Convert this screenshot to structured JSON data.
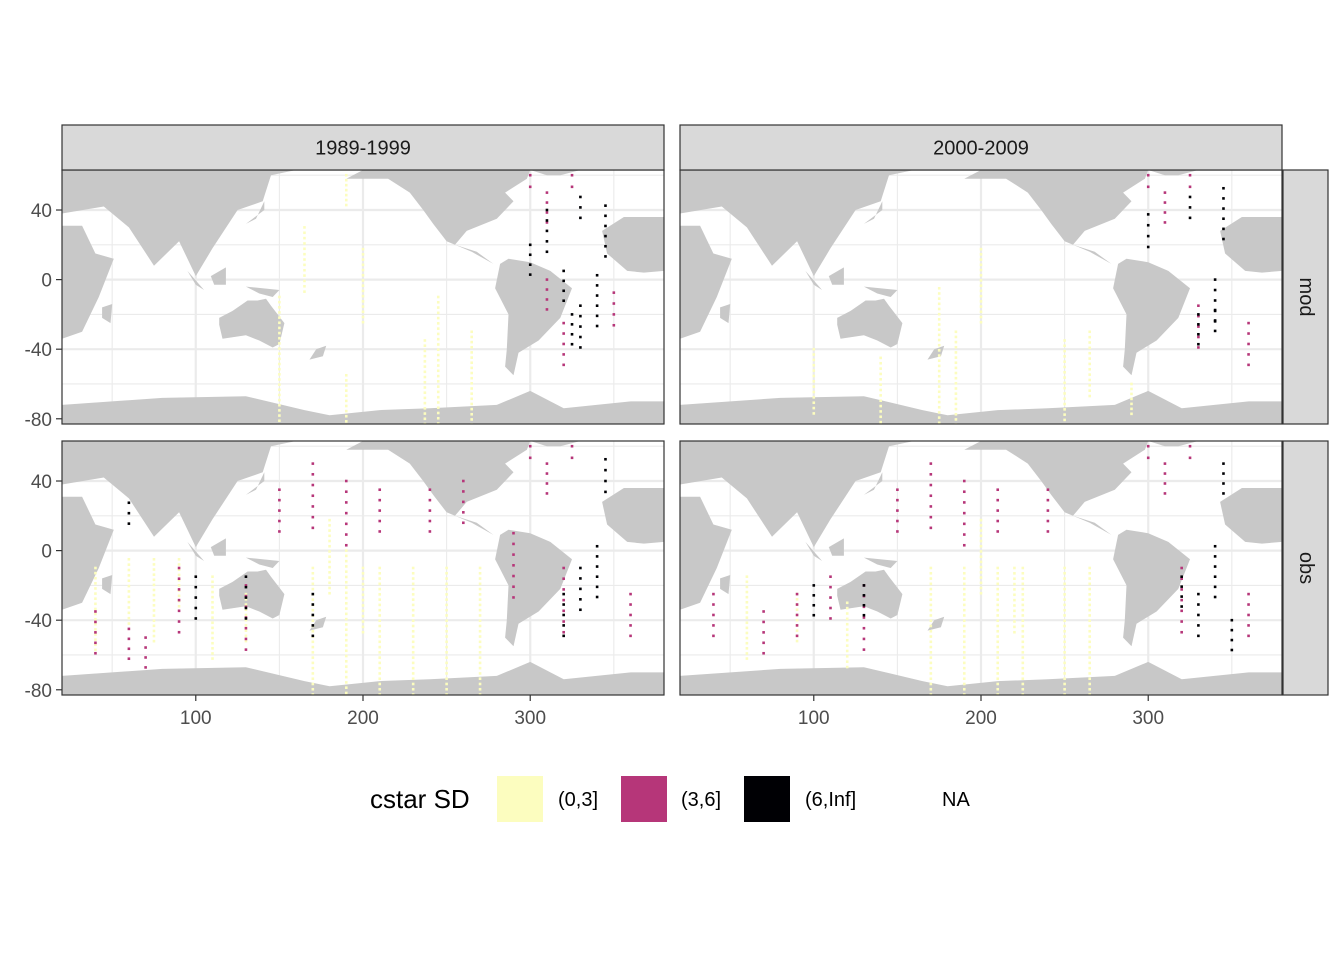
{
  "chart_data": {
    "type": "heatmap",
    "facets": {
      "columns": [
        "1989-1999",
        "2000-2009"
      ],
      "rows": [
        "mod",
        "obs"
      ]
    },
    "x_axis": {
      "label": "",
      "ticks": [
        100,
        200,
        300
      ],
      "xlim": [
        20,
        380
      ]
    },
    "y_axis": {
      "label": "",
      "ticks": [
        40,
        0,
        -40,
        -80
      ],
      "ylim": [
        -83,
        63
      ]
    },
    "legend": {
      "title": "cstar SD",
      "position": "bottom",
      "entries": [
        {
          "label": "(0,3]",
          "color": "#FCFDBF"
        },
        {
          "label": "(3,6]",
          "color": "#B63679"
        },
        {
          "label": "(6,Inf]",
          "color": "#000004"
        },
        {
          "label": "NA",
          "color": "#FFFFFF"
        }
      ]
    },
    "colors": {
      "land": "#C8C8C8",
      "ocean": "#FFFFFF",
      "grid": "#EBEBEB",
      "strip": "#D9D9D9",
      "border": "#333333"
    },
    "grid": true,
    "series": [
      {
        "name": "(0,3]",
        "panels": {
          "1989-1999|mod": [
            [
              190,
              -80,
              50
            ],
            [
              190,
              50,
              20
            ],
            [
              237,
              -65,
              60
            ],
            [
              245,
              -60,
              100
            ],
            [
              265,
              -70,
              80
            ],
            [
              150,
              -50,
              80
            ],
            [
              165,
              10,
              40
            ],
            [
              200,
              -5,
              45
            ]
          ],
          "2000-2009|mod": [
            [
              175,
              -60,
              110
            ],
            [
              185,
              -70,
              80
            ],
            [
              200,
              -5,
              45
            ],
            [
              250,
              -70,
              70
            ],
            [
              265,
              -50,
              40
            ],
            [
              100,
              -60,
              40
            ],
            [
              140,
              -65,
              40
            ],
            [
              290,
              -70,
              20
            ]
          ],
          "1989-1999|obs": [
            [
              40,
              -35,
              50
            ],
            [
              60,
              -25,
              40
            ],
            [
              75,
              -30,
              50
            ],
            [
              90,
              -20,
              30
            ],
            [
              110,
              -40,
              50
            ],
            [
              130,
              -40,
              30
            ],
            [
              170,
              -60,
              100
            ],
            [
              190,
              -50,
              100
            ],
            [
              210,
              -60,
              100
            ],
            [
              230,
              -60,
              100
            ],
            [
              250,
              -60,
              100
            ],
            [
              270,
              -60,
              100
            ],
            [
              180,
              -5,
              45
            ],
            [
              200,
              -30,
              40
            ]
          ],
          "2000-2009|obs": [
            [
              60,
              -40,
              50
            ],
            [
              90,
              -40,
              30
            ],
            [
              120,
              -50,
              40
            ],
            [
              170,
              -60,
              100
            ],
            [
              190,
              -60,
              100
            ],
            [
              210,
              -60,
              100
            ],
            [
              225,
              -60,
              100
            ],
            [
              250,
              -60,
              100
            ],
            [
              265,
              -60,
              100
            ],
            [
              200,
              -5,
              45
            ],
            [
              220,
              -30,
              40
            ]
          ]
        }
      },
      {
        "name": "(3,6]",
        "panels": {
          "1989-1999|mod": [
            [
              310,
              40,
              20
            ],
            [
              310,
              -10,
              20
            ],
            [
              320,
              -40,
              30
            ],
            [
              350,
              -20,
              25
            ],
            [
              325,
              55,
              10
            ],
            [
              300,
              55,
              10
            ]
          ],
          "2000-2009|mod": [
            [
              310,
              40,
              20
            ],
            [
              330,
              -30,
              30
            ],
            [
              360,
              -40,
              30
            ],
            [
              300,
              55,
              10
            ],
            [
              325,
              55,
              10
            ]
          ],
          "1989-1999|obs": [
            [
              310,
              40,
              20
            ],
            [
              320,
              -30,
              40
            ],
            [
              360,
              -40,
              30
            ],
            [
              40,
              -50,
              30
            ],
            [
              60,
              -55,
              20
            ],
            [
              70,
              -60,
              20
            ],
            [
              90,
              -30,
              40
            ],
            [
              130,
              -40,
              40
            ],
            [
              150,
              20,
              30
            ],
            [
              170,
              30,
              40
            ],
            [
              190,
              20,
              40
            ],
            [
              210,
              20,
              30
            ],
            [
              240,
              20,
              30
            ],
            [
              260,
              25,
              30
            ],
            [
              290,
              -10,
              40
            ],
            [
              300,
              55,
              10
            ],
            [
              325,
              55,
              10
            ]
          ],
          "2000-2009|obs": [
            [
              310,
              40,
              20
            ],
            [
              320,
              -30,
              40
            ],
            [
              360,
              -40,
              30
            ],
            [
              40,
              -40,
              30
            ],
            [
              70,
              -50,
              30
            ],
            [
              90,
              -40,
              30
            ],
            [
              130,
              -40,
              40
            ],
            [
              150,
              20,
              30
            ],
            [
              170,
              30,
              40
            ],
            [
              190,
              20,
              40
            ],
            [
              210,
              20,
              30
            ],
            [
              240,
              20,
              30
            ],
            [
              300,
              55,
              10
            ],
            [
              325,
              55,
              10
            ],
            [
              110,
              -30,
              30
            ]
          ]
        }
      },
      {
        "name": "(6,Inf]",
        "panels": {
          "1989-1999|mod": [
            [
              330,
              -30,
              30
            ],
            [
              340,
              -15,
              35
            ],
            [
              325,
              -30,
              20
            ],
            [
              345,
              25,
              35
            ],
            [
              330,
              40,
              15
            ],
            [
              320,
              -5,
              20
            ],
            [
              310,
              25,
              30
            ],
            [
              300,
              10,
              20
            ]
          ],
          "2000-2009|mod": [
            [
              340,
              -15,
              30
            ],
            [
              345,
              35,
              35
            ],
            [
              300,
              25,
              25
            ],
            [
              340,
              -25,
              15
            ],
            [
              325,
              40,
              15
            ],
            [
              330,
              -30,
              20
            ]
          ],
          "1989-1999|obs": [
            [
              330,
              -25,
              30
            ],
            [
              340,
              -15,
              35
            ],
            [
              320,
              -40,
              30
            ],
            [
              345,
              40,
              25
            ],
            [
              130,
              -30,
              30
            ],
            [
              60,
              20,
              15
            ],
            [
              100,
              -30,
              30
            ],
            [
              170,
              -40,
              30
            ]
          ],
          "2000-2009|obs": [
            [
              340,
              -15,
              35
            ],
            [
              330,
              -40,
              30
            ],
            [
              350,
              -50,
              20
            ],
            [
              345,
              40,
              20
            ],
            [
              320,
              -25,
              20
            ],
            [
              130,
              -30,
              20
            ],
            [
              100,
              -30,
              20
            ]
          ]
        }
      }
    ]
  }
}
